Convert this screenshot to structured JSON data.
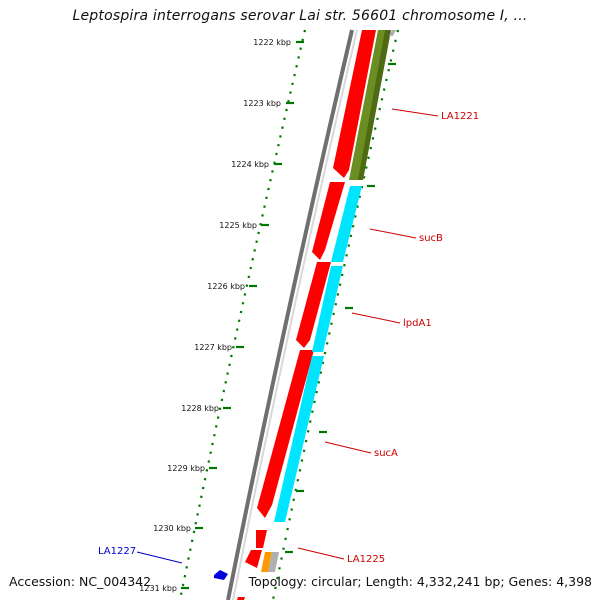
{
  "title": "Leptospira interrogans serovar Lai str. 56601 chromosome I, ...",
  "accession": "Accession: NC_004342",
  "topology": "Topology: circular; Length: 4,332,241 bp; Genes: 4,398",
  "colors": {
    "backbone": "#6f6f6f",
    "forward_cds": "#ff0000",
    "complement_feature": "#00e5ff",
    "olive_feature": "#6b8e23",
    "orange_feature": "#ff9900",
    "tick": "#007700",
    "gene_label": "#cc0000",
    "highlight_label": "#0000cc"
  },
  "scale_ticks": [
    "1222 kbp",
    "1223 kbp",
    "1224 kbp",
    "1225 kbp",
    "1226 kbp",
    "1227 kbp",
    "1228 kbp",
    "1229 kbp",
    "1230 kbp",
    "1231 kbp"
  ],
  "gene_labels": [
    {
      "name": "LA1221",
      "color": "#cc0000"
    },
    {
      "name": "sucB",
      "color": "#cc0000"
    },
    {
      "name": "lpdA1",
      "color": "#cc0000"
    },
    {
      "name": "sucA",
      "color": "#cc0000"
    },
    {
      "name": "LA1225",
      "color": "#cc0000"
    },
    {
      "name": "LA1227",
      "color": "#0000cc"
    }
  ]
}
